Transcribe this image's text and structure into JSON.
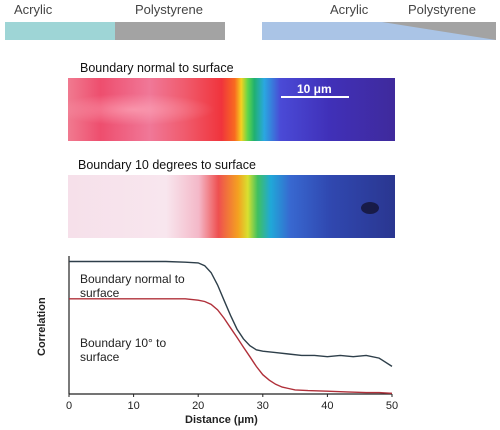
{
  "header": {
    "left_acrylic": "Acrylic",
    "left_polystyrene": "Polystyrene",
    "right_acrylic": "Acrylic",
    "right_polystyrene": "Polystyrene",
    "colors": {
      "acrylic_left": "#9ed5d6",
      "polystyrene": "#a3a3a3",
      "acrylic_right": "#aac4e6"
    }
  },
  "images": {
    "top_label": "Boundary normal to surface",
    "bottom_label": "Boundary 10 degrees to surface",
    "scale_bar": "10 μm"
  },
  "chart_data": {
    "type": "line",
    "xlabel": "Distance (μm)",
    "ylabel": "Correlation",
    "xlim": [
      0,
      50
    ],
    "x_ticks": [
      "0",
      "10",
      "20",
      "30",
      "40",
      "50"
    ],
    "annotations": [
      "Boundary normal to surface",
      "Boundary 10° to surface"
    ],
    "series": [
      {
        "color": "#2e3f4a",
        "x": [
          0,
          5,
          10,
          15,
          18,
          20,
          21,
          22,
          23,
          24,
          25,
          26,
          27,
          28,
          29,
          30,
          32,
          34,
          36,
          38,
          40,
          42,
          44,
          46,
          48,
          50
        ],
        "y": [
          0.96,
          0.96,
          0.96,
          0.96,
          0.955,
          0.95,
          0.93,
          0.88,
          0.79,
          0.68,
          0.57,
          0.47,
          0.4,
          0.35,
          0.32,
          0.31,
          0.3,
          0.29,
          0.28,
          0.28,
          0.27,
          0.28,
          0.27,
          0.28,
          0.26,
          0.2
        ]
      },
      {
        "color": "#b0303a",
        "x": [
          0,
          5,
          10,
          15,
          18,
          20,
          21,
          22,
          23,
          24,
          25,
          26,
          27,
          28,
          29,
          30,
          31,
          32,
          33,
          34,
          35,
          37,
          40,
          43,
          46,
          48,
          50
        ],
        "y": [
          0.69,
          0.69,
          0.69,
          0.69,
          0.69,
          0.68,
          0.67,
          0.65,
          0.61,
          0.55,
          0.48,
          0.41,
          0.34,
          0.27,
          0.2,
          0.14,
          0.1,
          0.07,
          0.05,
          0.04,
          0.03,
          0.025,
          0.02,
          0.015,
          0.01,
          0.01,
          0.005
        ]
      }
    ]
  }
}
